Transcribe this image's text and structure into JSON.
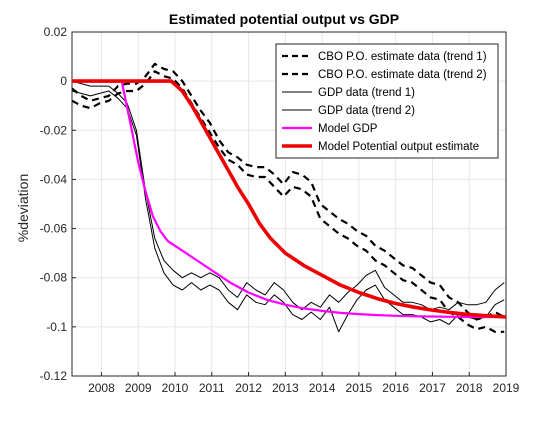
{
  "chart_data": {
    "type": "line",
    "title": "Estimated potential output vs GDP",
    "xlabel": "",
    "ylabel": "%deviation",
    "xlim": [
      2007.2,
      2019.0
    ],
    "ylim": [
      -0.12,
      0.02
    ],
    "grid": true,
    "legend_position": "top-right",
    "x_ticks": [
      {
        "v": 2008,
        "label": "2008"
      },
      {
        "v": 2009,
        "label": "2009"
      },
      {
        "v": 2010,
        "label": "2010"
      },
      {
        "v": 2011,
        "label": "2011"
      },
      {
        "v": 2012,
        "label": "2012"
      },
      {
        "v": 2013,
        "label": "2013"
      },
      {
        "v": 2014,
        "label": "2014"
      },
      {
        "v": 2015,
        "label": "2015"
      },
      {
        "v": 2016,
        "label": "2016"
      },
      {
        "v": 2017,
        "label": "2017"
      },
      {
        "v": 2018,
        "label": "2018"
      },
      {
        "v": 2019,
        "label": "2019"
      }
    ],
    "y_ticks": [
      {
        "v": 0.02,
        "label": "0.02"
      },
      {
        "v": 0.0,
        "label": "0"
      },
      {
        "v": -0.02,
        "label": "-0.02"
      },
      {
        "v": -0.04,
        "label": "-0.04"
      },
      {
        "v": -0.06,
        "label": "-0.06"
      },
      {
        "v": -0.08,
        "label": "-0.08"
      },
      {
        "v": -0.1,
        "label": "-0.1"
      },
      {
        "v": -0.12,
        "label": "-0.12"
      }
    ],
    "series": [
      {
        "name": "CBO P.O. estimate data (trend 1)",
        "color": "#000000",
        "dash": "dashed",
        "width": "thick",
        "x": [
          2007.2,
          2007.45,
          2007.7,
          2007.95,
          2008.2,
          2008.45,
          2008.7,
          2008.95,
          2009.2,
          2009.45,
          2009.7,
          2009.95,
          2010.2,
          2010.45,
          2010.7,
          2010.95,
          2011.2,
          2011.45,
          2011.7,
          2011.95,
          2012.2,
          2012.45,
          2012.7,
          2012.95,
          2013.2,
          2013.45,
          2013.7,
          2013.95,
          2014.2,
          2014.45,
          2014.7,
          2014.95,
          2015.2,
          2015.45,
          2015.7,
          2015.95,
          2016.2,
          2016.45,
          2016.7,
          2016.95,
          2017.2,
          2017.45,
          2017.7,
          2017.95,
          2018.2,
          2018.45,
          2018.7,
          2018.95
        ],
        "y": [
          -0.003,
          -0.006,
          -0.008,
          -0.007,
          -0.006,
          -0.002,
          -0.001,
          -0.001,
          0.002,
          0.007,
          0.005,
          0.004,
          0.0,
          -0.006,
          -0.012,
          -0.017,
          -0.024,
          -0.029,
          -0.031,
          -0.034,
          -0.035,
          -0.035,
          -0.038,
          -0.042,
          -0.037,
          -0.038,
          -0.041,
          -0.05,
          -0.053,
          -0.056,
          -0.058,
          -0.061,
          -0.063,
          -0.067,
          -0.069,
          -0.072,
          -0.075,
          -0.076,
          -0.079,
          -0.082,
          -0.083,
          -0.088,
          -0.09,
          -0.094,
          -0.097,
          -0.096,
          -0.094,
          -0.096
        ]
      },
      {
        "name": "CBO P.O. estimate data (trend 2)",
        "color": "#000000",
        "dash": "dashed",
        "width": "thick",
        "x": [
          2007.2,
          2007.45,
          2007.7,
          2007.95,
          2008.2,
          2008.45,
          2008.7,
          2008.95,
          2009.2,
          2009.45,
          2009.7,
          2009.95,
          2010.2,
          2010.45,
          2010.7,
          2010.95,
          2011.2,
          2011.45,
          2011.7,
          2011.95,
          2012.2,
          2012.45,
          2012.7,
          2012.95,
          2013.2,
          2013.45,
          2013.7,
          2013.95,
          2014.2,
          2014.45,
          2014.7,
          2014.95,
          2015.2,
          2015.45,
          2015.7,
          2015.95,
          2016.2,
          2016.45,
          2016.7,
          2016.95,
          2017.2,
          2017.45,
          2017.7,
          2017.95,
          2018.2,
          2018.45,
          2018.7,
          2018.95
        ],
        "y": [
          -0.008,
          -0.01,
          -0.011,
          -0.009,
          -0.008,
          -0.005,
          -0.004,
          -0.004,
          -0.001,
          0.004,
          0.002,
          0.001,
          -0.003,
          -0.009,
          -0.015,
          -0.021,
          -0.027,
          -0.032,
          -0.034,
          -0.038,
          -0.039,
          -0.039,
          -0.043,
          -0.047,
          -0.043,
          -0.044,
          -0.047,
          -0.056,
          -0.059,
          -0.062,
          -0.064,
          -0.067,
          -0.069,
          -0.073,
          -0.075,
          -0.078,
          -0.081,
          -0.082,
          -0.085,
          -0.088,
          -0.089,
          -0.094,
          -0.096,
          -0.099,
          -0.101,
          -0.1,
          -0.102,
          -0.102
        ]
      },
      {
        "name": "GDP data (trend 1)",
        "color": "#000000",
        "dash": "solid",
        "width": "thin",
        "x": [
          2007.2,
          2007.45,
          2007.7,
          2007.95,
          2008.2,
          2008.45,
          2008.7,
          2008.95,
          2009.2,
          2009.45,
          2009.7,
          2009.95,
          2010.2,
          2010.45,
          2010.7,
          2010.95,
          2011.2,
          2011.45,
          2011.7,
          2011.95,
          2012.2,
          2012.45,
          2012.7,
          2012.95,
          2013.2,
          2013.45,
          2013.7,
          2013.95,
          2014.2,
          2014.45,
          2014.7,
          2014.95,
          2015.2,
          2015.45,
          2015.7,
          2015.95,
          2016.2,
          2016.45,
          2016.7,
          2016.95,
          2017.2,
          2017.45,
          2017.7,
          2017.95,
          2018.2,
          2018.45,
          2018.7,
          2018.95
        ],
        "y": [
          0.0,
          -0.001,
          -0.002,
          -0.002,
          -0.002,
          -0.005,
          -0.009,
          -0.02,
          -0.045,
          -0.064,
          -0.073,
          -0.077,
          -0.08,
          -0.078,
          -0.08,
          -0.078,
          -0.08,
          -0.085,
          -0.088,
          -0.082,
          -0.085,
          -0.087,
          -0.082,
          -0.085,
          -0.09,
          -0.093,
          -0.09,
          -0.092,
          -0.087,
          -0.09,
          -0.086,
          -0.083,
          -0.079,
          -0.077,
          -0.084,
          -0.087,
          -0.09,
          -0.09,
          -0.091,
          -0.093,
          -0.092,
          -0.093,
          -0.09,
          -0.091,
          -0.091,
          -0.09,
          -0.085,
          -0.082
        ]
      },
      {
        "name": "GDP data (trend 2)",
        "color": "#000000",
        "dash": "solid",
        "width": "thin",
        "x": [
          2007.2,
          2007.45,
          2007.7,
          2007.95,
          2008.2,
          2008.45,
          2008.7,
          2008.95,
          2009.2,
          2009.45,
          2009.7,
          2009.95,
          2010.2,
          2010.45,
          2010.7,
          2010.95,
          2011.2,
          2011.45,
          2011.7,
          2011.95,
          2012.2,
          2012.45,
          2012.7,
          2012.95,
          2013.2,
          2013.45,
          2013.7,
          2013.95,
          2014.2,
          2014.45,
          2014.7,
          2014.95,
          2015.2,
          2015.45,
          2015.7,
          2015.95,
          2016.2,
          2016.45,
          2016.7,
          2016.95,
          2017.2,
          2017.45,
          2017.7,
          2017.95,
          2018.2,
          2018.45,
          2018.7,
          2018.95
        ],
        "y": [
          -0.004,
          -0.005,
          -0.006,
          -0.005,
          -0.004,
          -0.007,
          -0.011,
          -0.022,
          -0.048,
          -0.068,
          -0.078,
          -0.083,
          -0.085,
          -0.082,
          -0.085,
          -0.083,
          -0.085,
          -0.09,
          -0.093,
          -0.087,
          -0.09,
          -0.091,
          -0.087,
          -0.09,
          -0.095,
          -0.097,
          -0.094,
          -0.097,
          -0.092,
          -0.102,
          -0.095,
          -0.089,
          -0.085,
          -0.083,
          -0.089,
          -0.092,
          -0.095,
          -0.095,
          -0.096,
          -0.098,
          -0.097,
          -0.099,
          -0.095,
          -0.096,
          -0.097,
          -0.096,
          -0.091,
          -0.089
        ]
      },
      {
        "name": "Model GDP",
        "color": "#ff00ff",
        "dash": "solid",
        "width": "thick",
        "x": [
          2007.2,
          2007.6,
          2008.0,
          2008.4,
          2008.55,
          2008.8,
          2009.0,
          2009.2,
          2009.4,
          2009.6,
          2009.8,
          2010.0,
          2010.3,
          2010.6,
          2011.0,
          2011.5,
          2012.0,
          2012.5,
          2013.0,
          2013.5,
          2014.0,
          2014.5,
          2015.0,
          2015.5,
          2016.0,
          2016.5,
          2017.0,
          2017.5,
          2018.0,
          2018.5,
          2019.0
        ],
        "y": [
          0.0,
          0.0,
          0.0,
          0.0,
          0.0,
          -0.018,
          -0.033,
          -0.045,
          -0.055,
          -0.061,
          -0.065,
          -0.067,
          -0.07,
          -0.073,
          -0.077,
          -0.082,
          -0.086,
          -0.089,
          -0.091,
          -0.0925,
          -0.0935,
          -0.0943,
          -0.0948,
          -0.0952,
          -0.0955,
          -0.0957,
          -0.0958,
          -0.0959,
          -0.096,
          -0.096,
          -0.096
        ]
      },
      {
        "name": "Model Potential output estimate",
        "color": "#ee0000",
        "dash": "solid",
        "width": "thicker",
        "x": [
          2007.2,
          2008.0,
          2009.0,
          2009.5,
          2009.9,
          2010.2,
          2010.5,
          2010.8,
          2011.1,
          2011.4,
          2011.7,
          2012.0,
          2012.3,
          2012.6,
          2013.0,
          2013.5,
          2014.0,
          2014.5,
          2015.0,
          2015.5,
          2016.0,
          2016.5,
          2017.0,
          2017.5,
          2018.0,
          2018.5,
          2019.0
        ],
        "y": [
          0.0,
          0.0,
          0.0,
          0.0,
          0.0,
          -0.004,
          -0.011,
          -0.019,
          -0.027,
          -0.035,
          -0.043,
          -0.05,
          -0.058,
          -0.064,
          -0.07,
          -0.075,
          -0.079,
          -0.083,
          -0.086,
          -0.0885,
          -0.0905,
          -0.092,
          -0.0932,
          -0.0942,
          -0.095,
          -0.0955,
          -0.096
        ]
      }
    ]
  }
}
